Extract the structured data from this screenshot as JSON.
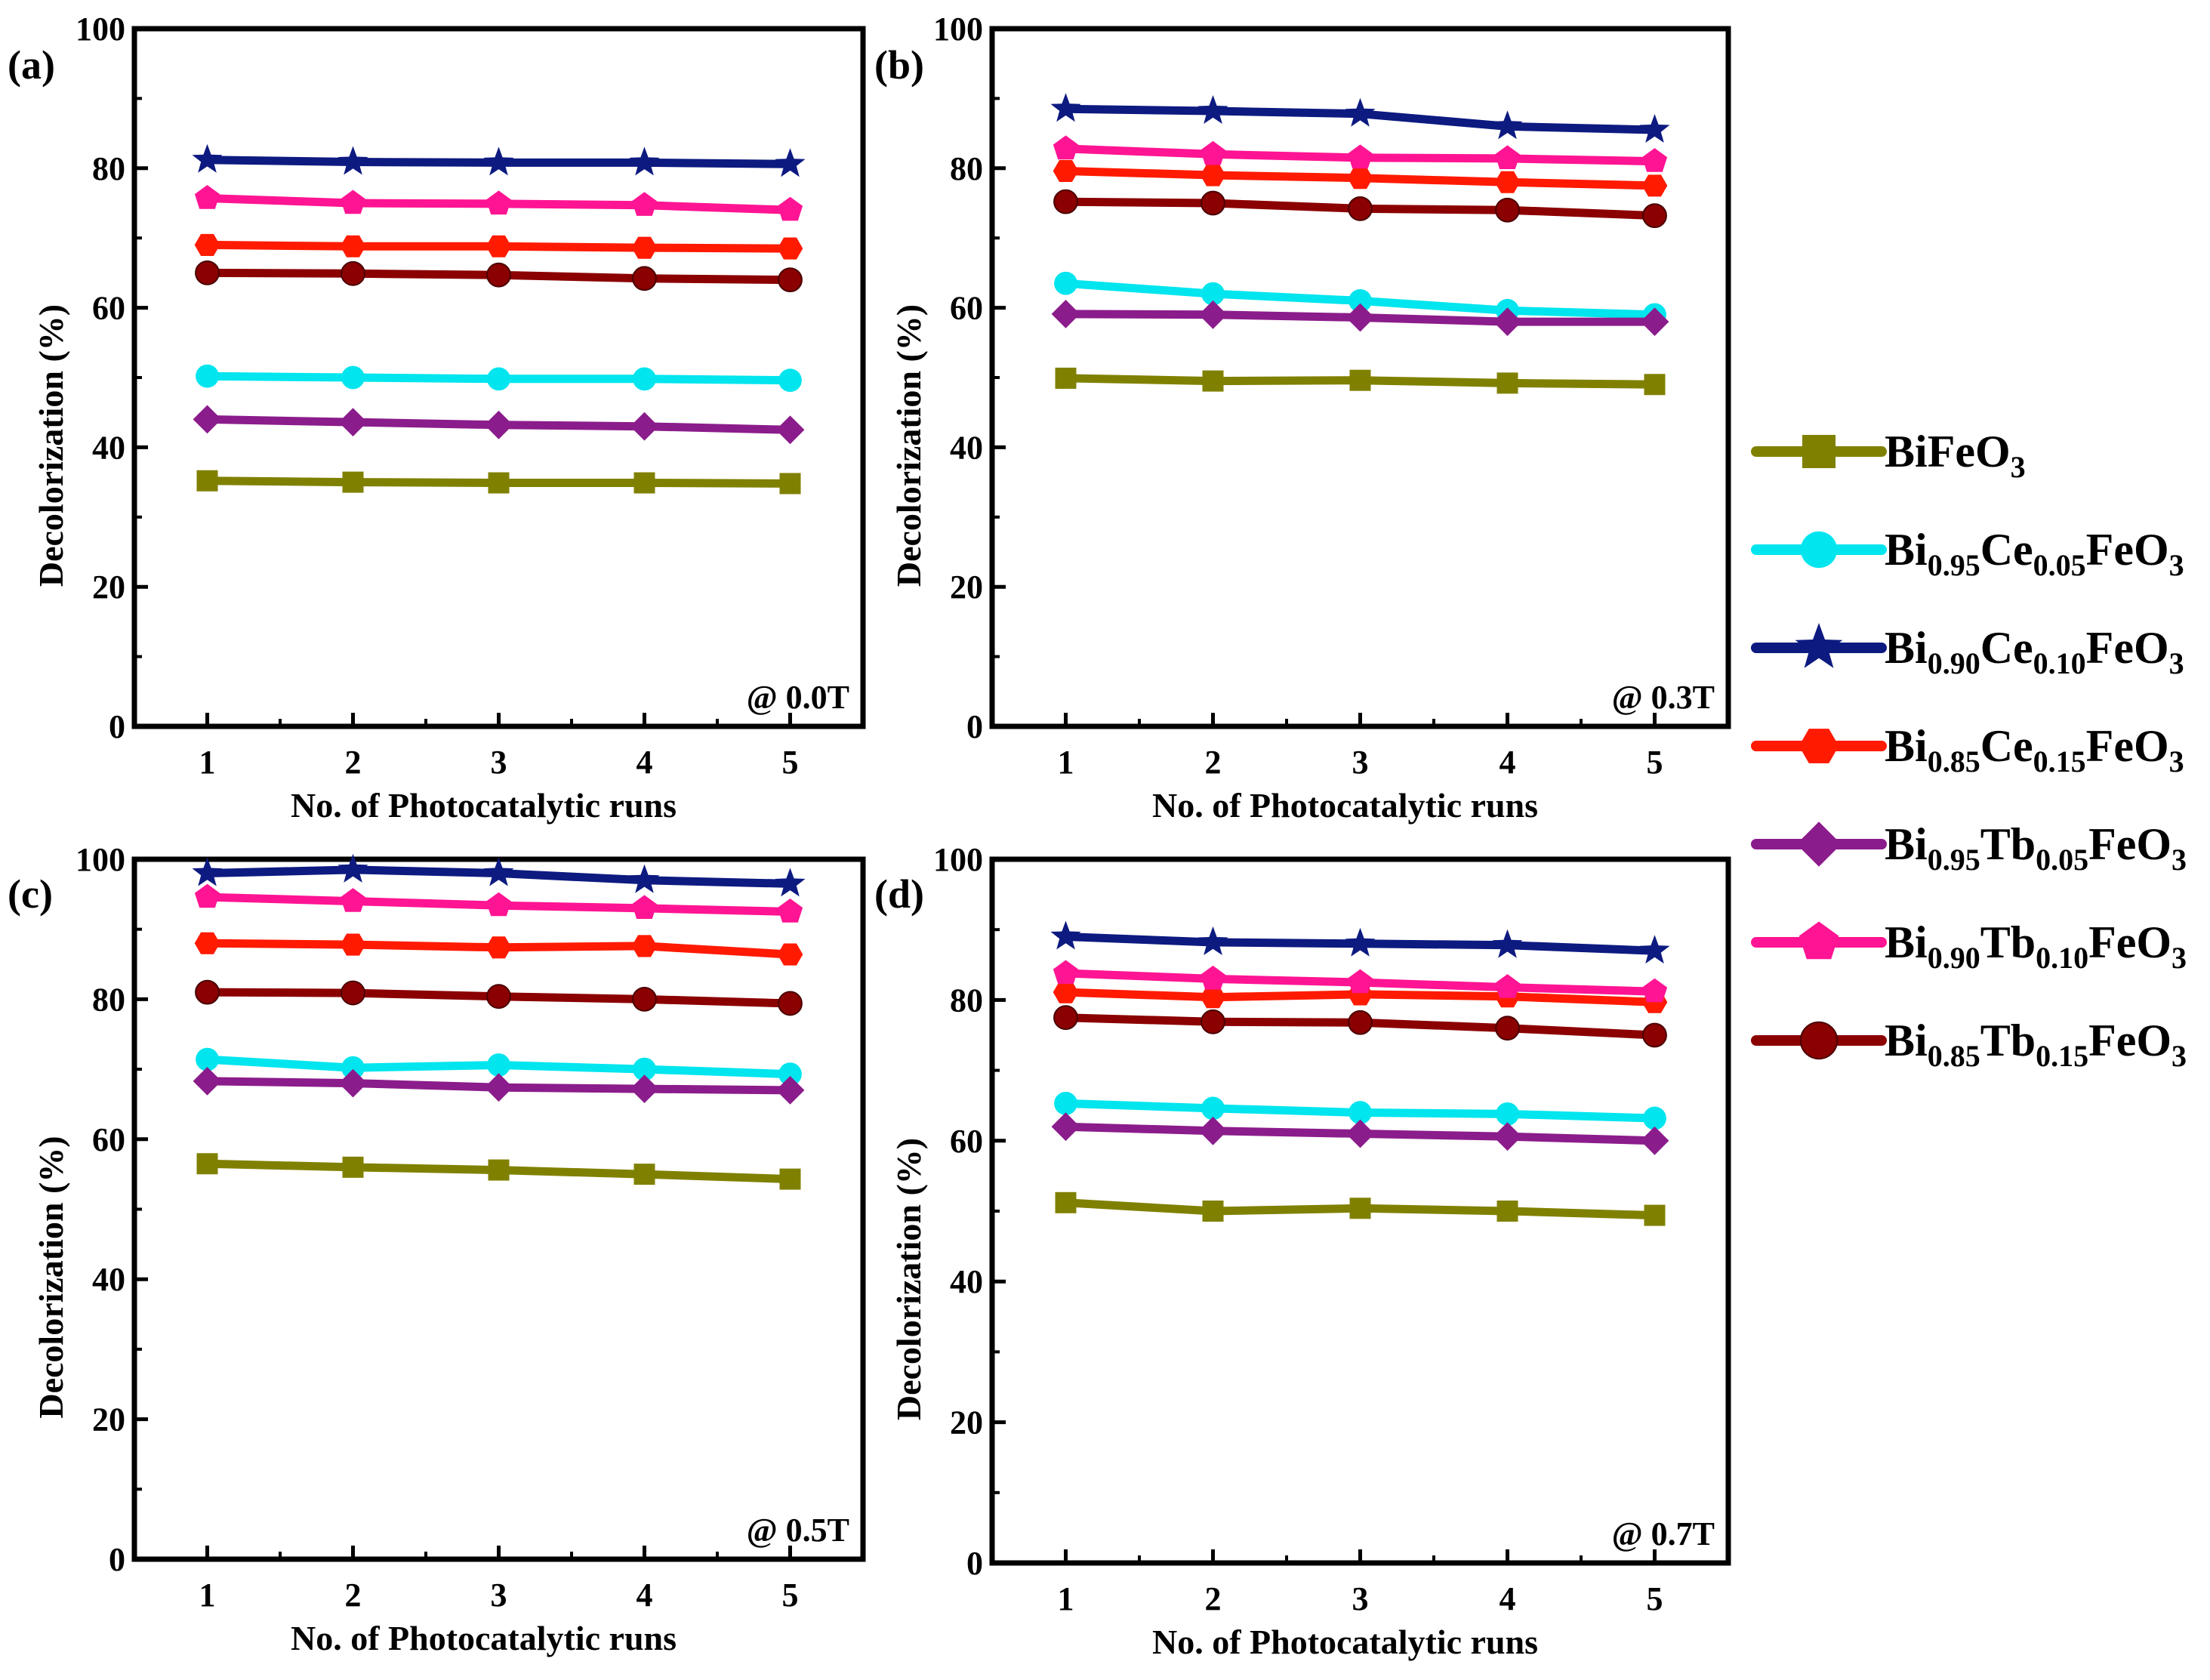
{
  "chart_data": {
    "type": "line",
    "legend": [
      {
        "key": "bifeo3",
        "parts": [
          [
            "Bi",
            ""
          ],
          [
            "FeO",
            ""
          ],
          [
            "3",
            "sub"
          ]
        ],
        "color": "#808000",
        "marker": "square"
      },
      {
        "key": "ce005",
        "parts": [
          [
            "Bi",
            ""
          ],
          [
            "0.95",
            "sub"
          ],
          [
            "Ce",
            ""
          ],
          [
            "0.05",
            "sub"
          ],
          [
            "FeO",
            ""
          ],
          [
            "3",
            "sub"
          ]
        ],
        "color": "#00e5ee",
        "marker": "circle"
      },
      {
        "key": "ce010",
        "parts": [
          [
            "Bi",
            ""
          ],
          [
            "0.90",
            "sub"
          ],
          [
            "Ce",
            ""
          ],
          [
            "0.10",
            "sub"
          ],
          [
            "FeO",
            ""
          ],
          [
            "3",
            "sub"
          ]
        ],
        "color": "#0d1a80",
        "marker": "star"
      },
      {
        "key": "ce015",
        "parts": [
          [
            "Bi",
            ""
          ],
          [
            "0.85",
            "sub"
          ],
          [
            "Ce",
            ""
          ],
          [
            "0.15",
            "sub"
          ],
          [
            "FeO",
            ""
          ],
          [
            "3",
            "sub"
          ]
        ],
        "color": "#ff1a00",
        "marker": "hexagon"
      },
      {
        "key": "tb005",
        "parts": [
          [
            "Bi",
            ""
          ],
          [
            "0.95",
            "sub"
          ],
          [
            "Tb",
            ""
          ],
          [
            "0.05",
            "sub"
          ],
          [
            "FeO",
            ""
          ],
          [
            "3",
            "sub"
          ]
        ],
        "color": "#8b1c8b",
        "marker": "diamond"
      },
      {
        "key": "tb010",
        "parts": [
          [
            "Bi",
            ""
          ],
          [
            "0.90",
            "sub"
          ],
          [
            "Tb",
            ""
          ],
          [
            "0.10",
            "sub"
          ],
          [
            "FeO",
            ""
          ],
          [
            "3",
            "sub"
          ]
        ],
        "color": "#ff1493",
        "marker": "pentagon"
      },
      {
        "key": "tb015",
        "parts": [
          [
            "Bi",
            ""
          ],
          [
            "0.85",
            "sub"
          ],
          [
            "Tb",
            ""
          ],
          [
            "0.15",
            "sub"
          ],
          [
            "FeO",
            ""
          ],
          [
            "3",
            "sub"
          ]
        ],
        "color": "#8b0000",
        "marker": "sphere"
      }
    ],
    "panels": [
      {
        "tag": "(a)",
        "field": "@ 0.0T",
        "xlabel": "No. of Photocatalytic runs",
        "ylabel": "Decolorization (%)",
        "x": [
          1,
          2,
          3,
          4,
          5
        ],
        "ylim": [
          0,
          100
        ],
        "yticks": [
          0,
          20,
          40,
          60,
          80,
          100
        ],
        "series": [
          {
            "key": "bifeo3",
            "values": [
              35.2,
              35.0,
              34.9,
              34.9,
              34.8
            ]
          },
          {
            "key": "ce005",
            "values": [
              50.2,
              50.0,
              49.8,
              49.8,
              49.6
            ]
          },
          {
            "key": "ce010",
            "values": [
              81.2,
              80.9,
              80.8,
              80.8,
              80.6
            ]
          },
          {
            "key": "ce015",
            "values": [
              69.0,
              68.8,
              68.8,
              68.6,
              68.5
            ]
          },
          {
            "key": "tb005",
            "values": [
              44.0,
              43.6,
              43.2,
              43.0,
              42.5
            ]
          },
          {
            "key": "tb010",
            "values": [
              75.7,
              75.0,
              74.9,
              74.7,
              74.0
            ]
          },
          {
            "key": "tb015",
            "values": [
              65.0,
              64.9,
              64.7,
              64.2,
              64.0
            ]
          }
        ]
      },
      {
        "tag": "(b)",
        "field": "@ 0.3T",
        "xlabel": "No. of Photocatalytic runs",
        "ylabel": "Decolorization (%)",
        "x": [
          1,
          2,
          3,
          4,
          5
        ],
        "ylim": [
          0,
          100
        ],
        "yticks": [
          0,
          20,
          40,
          60,
          80,
          100
        ],
        "series": [
          {
            "key": "bifeo3",
            "values": [
              49.9,
              49.5,
              49.6,
              49.2,
              49.0
            ]
          },
          {
            "key": "ce005",
            "values": [
              63.5,
              62.0,
              61.0,
              59.6,
              59.0
            ]
          },
          {
            "key": "ce010",
            "values": [
              88.5,
              88.2,
              87.8,
              86.0,
              85.5
            ]
          },
          {
            "key": "ce015",
            "values": [
              79.6,
              79.0,
              78.6,
              78.0,
              77.5
            ]
          },
          {
            "key": "tb005",
            "values": [
              59.1,
              59.0,
              58.6,
              58.0,
              58.0
            ]
          },
          {
            "key": "tb010",
            "values": [
              82.8,
              82.0,
              81.5,
              81.4,
              81.0
            ]
          },
          {
            "key": "tb015",
            "values": [
              75.2,
              75.0,
              74.2,
              74.0,
              73.2
            ]
          }
        ]
      },
      {
        "tag": "(c)",
        "field": "@ 0.5T",
        "xlabel": "No. of Photocatalytic runs",
        "ylabel": "Decolorization (%)",
        "x": [
          1,
          2,
          3,
          4,
          5
        ],
        "ylim": [
          0,
          100
        ],
        "yticks": [
          0,
          20,
          40,
          60,
          80,
          100
        ],
        "series": [
          {
            "key": "bifeo3",
            "values": [
              56.5,
              56.0,
              55.6,
              55.0,
              54.3
            ]
          },
          {
            "key": "ce005",
            "values": [
              71.4,
              70.2,
              70.6,
              70.0,
              69.3
            ]
          },
          {
            "key": "ce010",
            "values": [
              98.0,
              98.5,
              98.0,
              97.0,
              96.5
            ]
          },
          {
            "key": "ce015",
            "values": [
              88.0,
              87.8,
              87.4,
              87.6,
              86.4
            ]
          },
          {
            "key": "tb005",
            "values": [
              68.3,
              68.0,
              67.4,
              67.2,
              67.0
            ]
          },
          {
            "key": "tb010",
            "values": [
              94.6,
              94.0,
              93.4,
              93.0,
              92.5
            ]
          },
          {
            "key": "tb015",
            "values": [
              81.0,
              80.9,
              80.4,
              80.0,
              79.4
            ]
          }
        ]
      },
      {
        "tag": "(d)",
        "field": "@ 0.7T",
        "xlabel": "No. of Photocatalytic runs",
        "ylabel": "Decolorization (%)",
        "x": [
          1,
          2,
          3,
          4,
          5
        ],
        "ylim": [
          0,
          100
        ],
        "yticks": [
          0,
          20,
          40,
          60,
          80,
          100
        ],
        "series": [
          {
            "key": "bifeo3",
            "values": [
              51.2,
              50.0,
              50.4,
              50.0,
              49.4
            ]
          },
          {
            "key": "ce005",
            "values": [
              65.3,
              64.6,
              64.0,
              63.8,
              63.2
            ]
          },
          {
            "key": "ce010",
            "values": [
              89.0,
              88.2,
              88.0,
              87.8,
              87.0
            ]
          },
          {
            "key": "ce015",
            "values": [
              81.1,
              80.4,
              80.8,
              80.5,
              79.7
            ]
          },
          {
            "key": "tb005",
            "values": [
              62.0,
              61.4,
              61.0,
              60.6,
              60.0
            ]
          },
          {
            "key": "tb010",
            "values": [
              83.8,
              83.0,
              82.5,
              81.8,
              81.2
            ]
          },
          {
            "key": "tb015",
            "values": [
              77.5,
              76.9,
              76.8,
              76.0,
              75.0
            ]
          }
        ]
      }
    ]
  }
}
